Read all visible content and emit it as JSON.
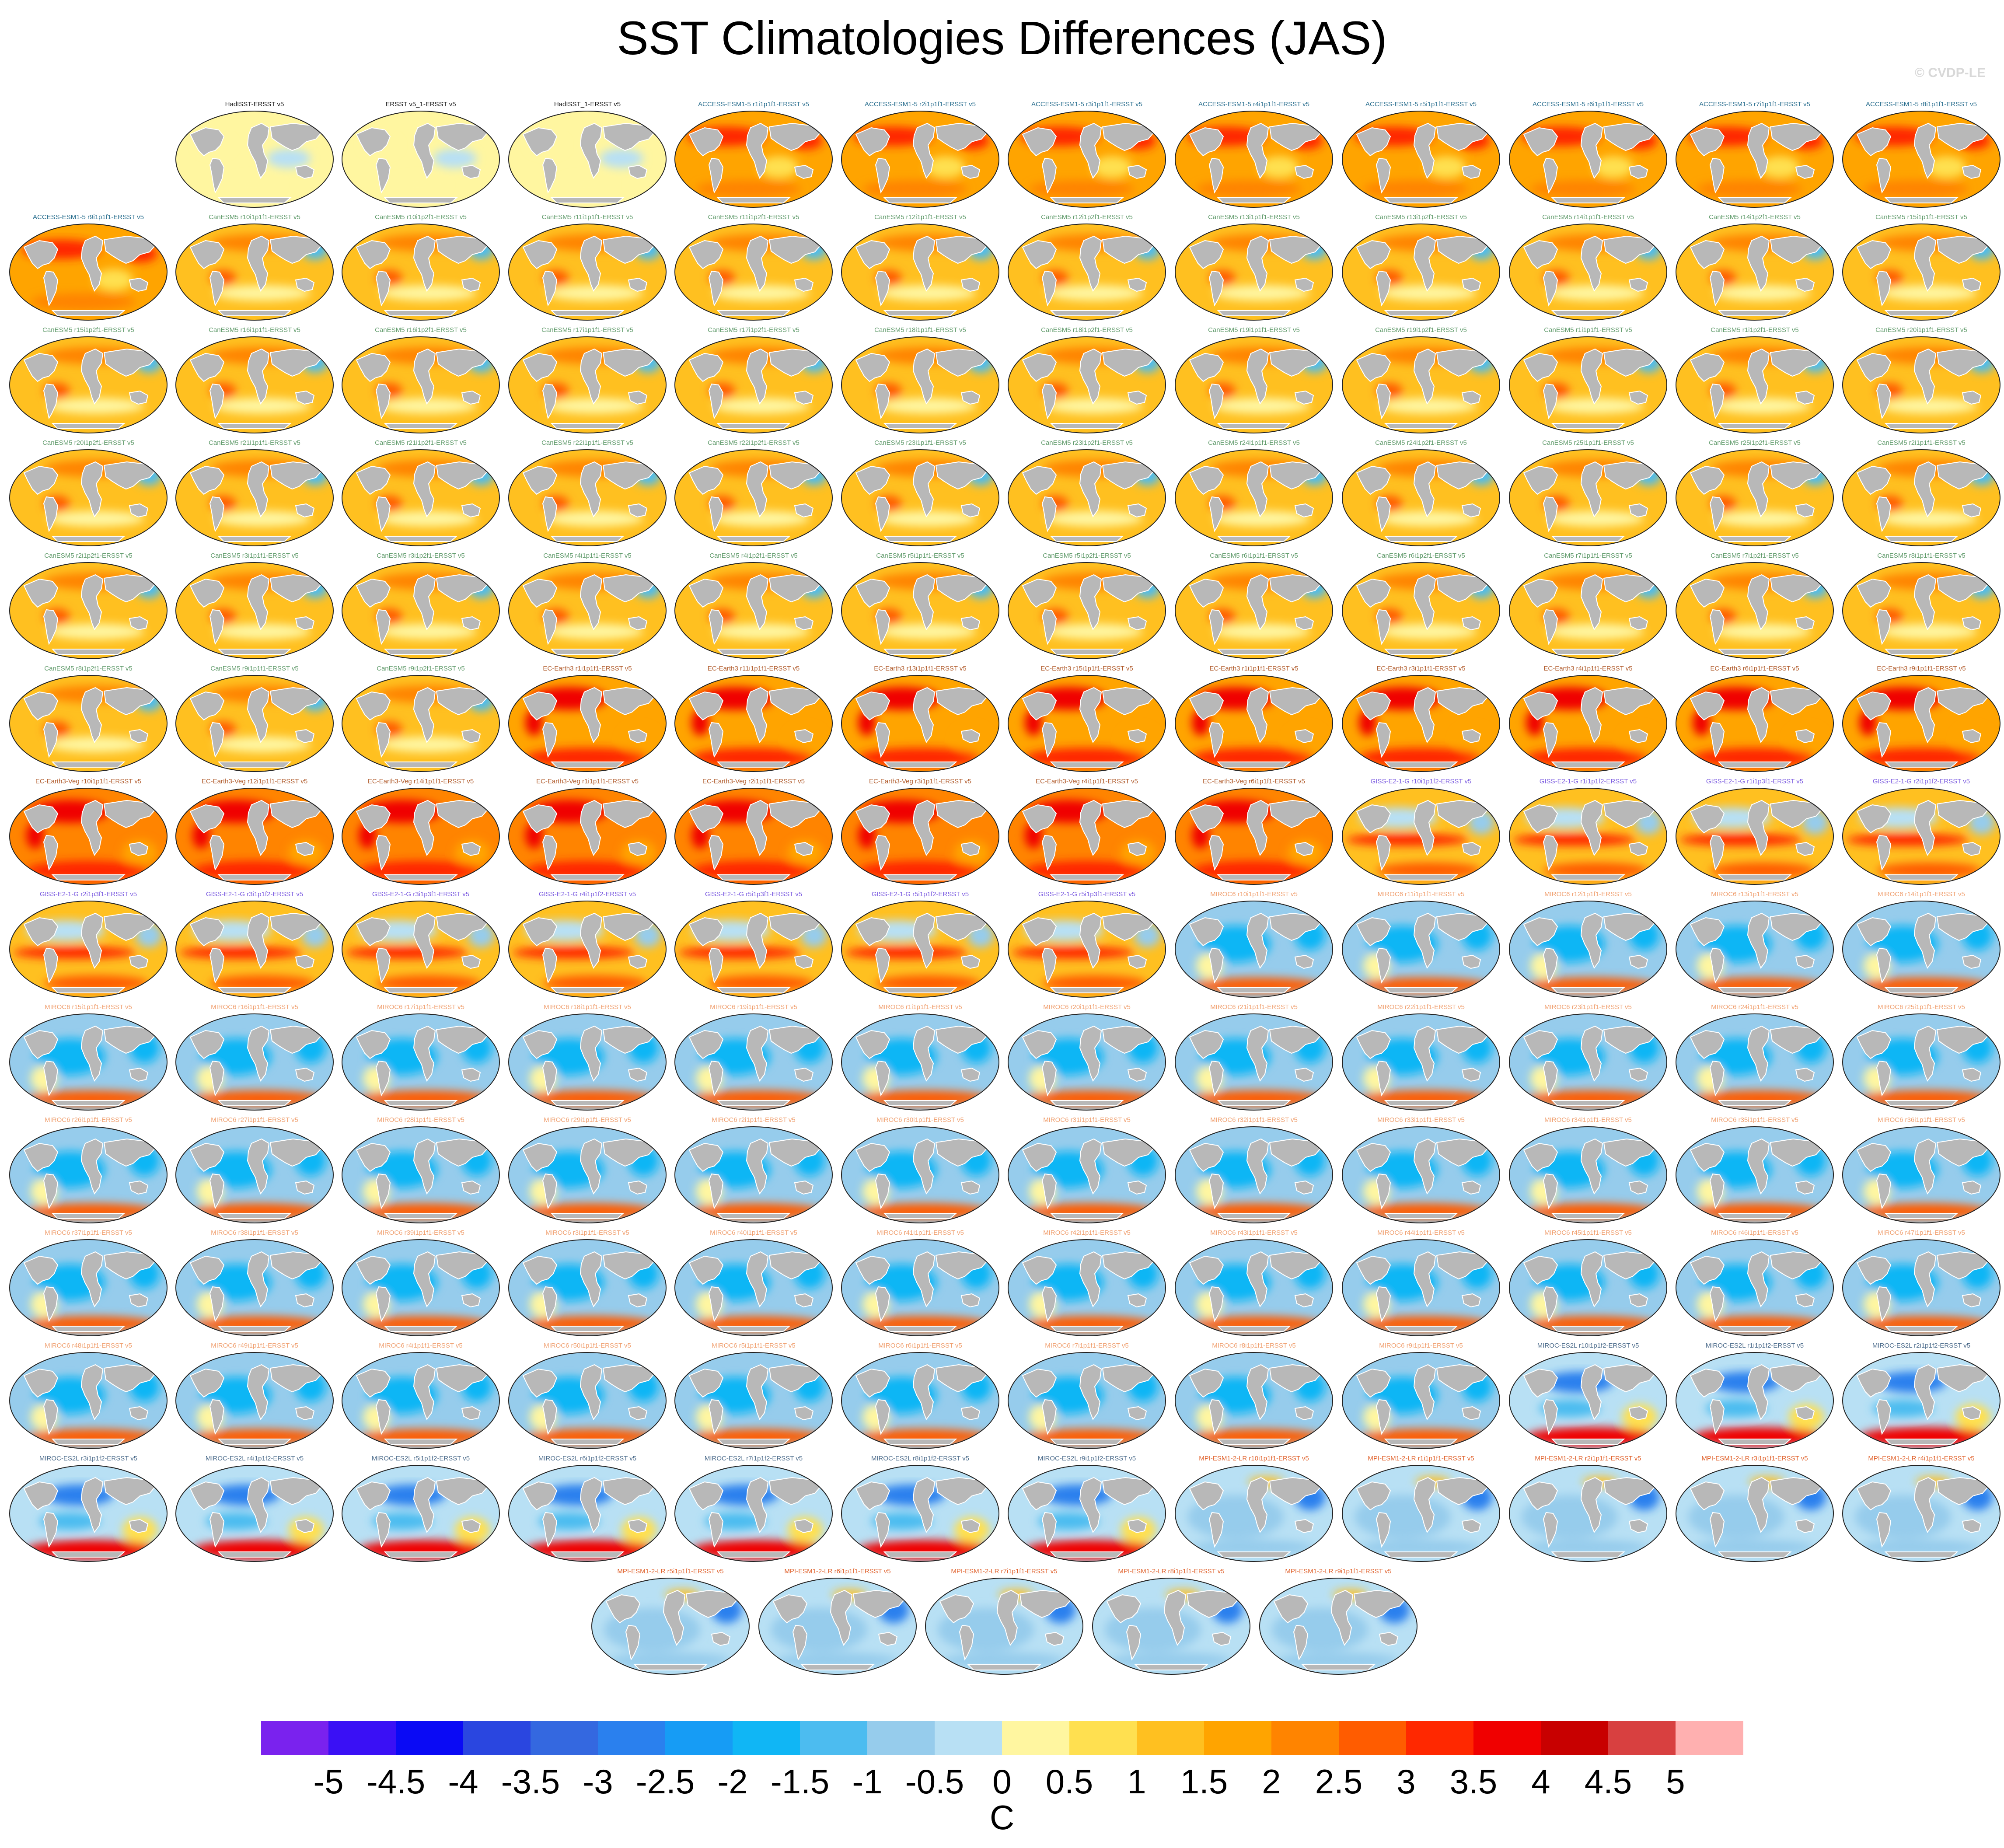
{
  "chart_data": {
    "type": "heatmap",
    "title": "SST Climatologies Differences (JAS)",
    "credit": "© CVDP-LE",
    "projection": "global maps, sea surface temperature difference vs observations",
    "colorbar": {
      "unit": "C",
      "levels": [
        "-5",
        "-4.5",
        "-4",
        "-3.5",
        "-3",
        "-2.5",
        "-2",
        "-1.5",
        "-1",
        "-0.5",
        "0",
        "0.5",
        "1",
        "1.5",
        "2",
        "2.5",
        "3",
        "3.5",
        "4",
        "4.5",
        "5"
      ],
      "colors": [
        "#7a22ee",
        "#3a10f5",
        "#0a0af5",
        "#2a46e0",
        "#3468e0",
        "#2a80ee",
        "#169cf5",
        "#10b6f5",
        "#4cbcf0",
        "#96ccec",
        "#b8e0f4",
        "#fff6a0",
        "#ffe050",
        "#ffc020",
        "#ffa400",
        "#ff8400",
        "#ff5c00",
        "#ff2800",
        "#f00000",
        "#c80000",
        "#d84040",
        "#ffb0b0"
      ]
    },
    "panels": [
      {
        "label": "HadISST-ERSST v5",
        "family": "obs",
        "bias": 0.05
      },
      {
        "label": "ERSST v5_1-ERSST v5",
        "family": "obs",
        "bias": 0.02
      },
      {
        "label": "HadISST_1-ERSST v5",
        "family": "obs",
        "bias": 0.05
      },
      {
        "label": "ACCESS-ESM1-5 r1i1p1f1-ERSST v5",
        "family": "access",
        "bias": 1.6
      },
      {
        "label": "ACCESS-ESM1-5 r2i1p1f1-ERSST v5",
        "family": "access",
        "bias": 1.6
      },
      {
        "label": "ACCESS-ESM1-5 r3i1p1f1-ERSST v5",
        "family": "access",
        "bias": 1.6
      },
      {
        "label": "ACCESS-ESM1-5 r4i1p1f1-ERSST v5",
        "family": "access",
        "bias": 1.6
      },
      {
        "label": "ACCESS-ESM1-5 r5i1p1f1-ERSST v5",
        "family": "access",
        "bias": 1.6
      },
      {
        "label": "ACCESS-ESM1-5 r6i1p1f1-ERSST v5",
        "family": "access",
        "bias": 1.6
      },
      {
        "label": "ACCESS-ESM1-5 r7i1p1f1-ERSST v5",
        "family": "access",
        "bias": 1.6
      },
      {
        "label": "ACCESS-ESM1-5 r8i1p1f1-ERSST v5",
        "family": "access",
        "bias": 1.6
      },
      {
        "label": "ACCESS-ESM1-5 r9i1p1f1-ERSST v5",
        "family": "access",
        "bias": 1.6
      },
      {
        "label": "CanESM5 r10i1p1f1-ERSST v5",
        "family": "canesm",
        "bias": 1.2
      },
      {
        "label": "CanESM5 r10i1p2f1-ERSST v5",
        "family": "canesm",
        "bias": 1.2
      },
      {
        "label": "CanESM5 r11i1p1f1-ERSST v5",
        "family": "canesm",
        "bias": 1.2
      },
      {
        "label": "CanESM5 r11i1p2f1-ERSST v5",
        "family": "canesm",
        "bias": 1.2
      },
      {
        "label": "CanESM5 r12i1p1f1-ERSST v5",
        "family": "canesm",
        "bias": 1.2
      },
      {
        "label": "CanESM5 r12i1p2f1-ERSST v5",
        "family": "canesm",
        "bias": 1.2
      },
      {
        "label": "CanESM5 r13i1p1f1-ERSST v5",
        "family": "canesm",
        "bias": 1.2
      },
      {
        "label": "CanESM5 r13i1p2f1-ERSST v5",
        "family": "canesm",
        "bias": 1.2
      },
      {
        "label": "CanESM5 r14i1p1f1-ERSST v5",
        "family": "canesm",
        "bias": 1.2
      },
      {
        "label": "CanESM5 r14i1p2f1-ERSST v5",
        "family": "canesm",
        "bias": 1.2
      },
      {
        "label": "CanESM5 r15i1p1f1-ERSST v5",
        "family": "canesm",
        "bias": 1.2
      },
      {
        "label": "CanESM5 r15i1p2f1-ERSST v5",
        "family": "canesm",
        "bias": 1.2
      },
      {
        "label": "CanESM5 r16i1p1f1-ERSST v5",
        "family": "canesm",
        "bias": 1.2
      },
      {
        "label": "CanESM5 r16i1p2f1-ERSST v5",
        "family": "canesm",
        "bias": 1.2
      },
      {
        "label": "CanESM5 r17i1p1f1-ERSST v5",
        "family": "canesm",
        "bias": 1.2
      },
      {
        "label": "CanESM5 r17i1p2f1-ERSST v5",
        "family": "canesm",
        "bias": 1.2
      },
      {
        "label": "CanESM5 r18i1p1f1-ERSST v5",
        "family": "canesm",
        "bias": 1.2
      },
      {
        "label": "CanESM5 r18i1p2f1-ERSST v5",
        "family": "canesm",
        "bias": 1.2
      },
      {
        "label": "CanESM5 r19i1p1f1-ERSST v5",
        "family": "canesm",
        "bias": 1.2
      },
      {
        "label": "CanESM5 r19i1p2f1-ERSST v5",
        "family": "canesm",
        "bias": 1.2
      },
      {
        "label": "CanESM5 r1i1p1f1-ERSST v5",
        "family": "canesm",
        "bias": 1.2
      },
      {
        "label": "CanESM5 r1i1p2f1-ERSST v5",
        "family": "canesm",
        "bias": 1.2
      },
      {
        "label": "CanESM5 r20i1p1f1-ERSST v5",
        "family": "canesm",
        "bias": 1.2
      },
      {
        "label": "CanESM5 r20i1p2f1-ERSST v5",
        "family": "canesm",
        "bias": 1.2
      },
      {
        "label": "CanESM5 r21i1p1f1-ERSST v5",
        "family": "canesm",
        "bias": 1.2
      },
      {
        "label": "CanESM5 r21i1p2f1-ERSST v5",
        "family": "canesm",
        "bias": 1.2
      },
      {
        "label": "CanESM5 r22i1p1f1-ERSST v5",
        "family": "canesm",
        "bias": 1.2
      },
      {
        "label": "CanESM5 r22i1p2f1-ERSST v5",
        "family": "canesm",
        "bias": 1.2
      },
      {
        "label": "CanESM5 r23i1p1f1-ERSST v5",
        "family": "canesm",
        "bias": 1.2
      },
      {
        "label": "CanESM5 r23i1p2f1-ERSST v5",
        "family": "canesm",
        "bias": 1.2
      },
      {
        "label": "CanESM5 r24i1p1f1-ERSST v5",
        "family": "canesm",
        "bias": 1.2
      },
      {
        "label": "CanESM5 r24i1p2f1-ERSST v5",
        "family": "canesm",
        "bias": 1.2
      },
      {
        "label": "CanESM5 r25i1p1f1-ERSST v5",
        "family": "canesm",
        "bias": 1.2
      },
      {
        "label": "CanESM5 r25i1p2f1-ERSST v5",
        "family": "canesm",
        "bias": 1.2
      },
      {
        "label": "CanESM5 r2i1p1f1-ERSST v5",
        "family": "canesm",
        "bias": 1.2
      },
      {
        "label": "CanESM5 r2i1p2f1-ERSST v5",
        "family": "canesm",
        "bias": 1.2
      },
      {
        "label": "CanESM5 r3i1p1f1-ERSST v5",
        "family": "canesm",
        "bias": 1.2
      },
      {
        "label": "CanESM5 r3i1p2f1-ERSST v5",
        "family": "canesm",
        "bias": 1.2
      },
      {
        "label": "CanESM5 r4i1p1f1-ERSST v5",
        "family": "canesm",
        "bias": 1.2
      },
      {
        "label": "CanESM5 r4i1p2f1-ERSST v5",
        "family": "canesm",
        "bias": 1.2
      },
      {
        "label": "CanESM5 r5i1p1f1-ERSST v5",
        "family": "canesm",
        "bias": 1.2
      },
      {
        "label": "CanESM5 r5i1p2f1-ERSST v5",
        "family": "canesm",
        "bias": 1.2
      },
      {
        "label": "CanESM5 r6i1p1f1-ERSST v5",
        "family": "canesm",
        "bias": 1.2
      },
      {
        "label": "CanESM5 r6i1p2f1-ERSST v5",
        "family": "canesm",
        "bias": 1.2
      },
      {
        "label": "CanESM5 r7i1p1f1-ERSST v5",
        "family": "canesm",
        "bias": 1.2
      },
      {
        "label": "CanESM5 r7i1p2f1-ERSST v5",
        "family": "canesm",
        "bias": 1.2
      },
      {
        "label": "CanESM5 r8i1p1f1-ERSST v5",
        "family": "canesm",
        "bias": 1.2
      },
      {
        "label": "CanESM5 r8i1p2f1-ERSST v5",
        "family": "canesm",
        "bias": 1.2
      },
      {
        "label": "CanESM5 r9i1p1f1-ERSST v5",
        "family": "canesm",
        "bias": 1.2
      },
      {
        "label": "CanESM5 r9i1p2f1-ERSST v5",
        "family": "canesm",
        "bias": 1.2
      },
      {
        "label": "EC-Earth3 r1i1p1f1-ERSST v5",
        "family": "ecearth",
        "bias": 1.9
      },
      {
        "label": "EC-Earth3 r11i1p1f1-ERSST v5",
        "family": "ecearth",
        "bias": 1.9
      },
      {
        "label": "EC-Earth3 r13i1p1f1-ERSST v5",
        "family": "ecearth",
        "bias": 1.9
      },
      {
        "label": "EC-Earth3 r15i1p1f1-ERSST v5",
        "family": "ecearth",
        "bias": 1.9
      },
      {
        "label": "EC-Earth3 r1i1p1f1-ERSST v5",
        "family": "ecearth",
        "bias": 1.9
      },
      {
        "label": "EC-Earth3 r3i1p1f1-ERSST v5",
        "family": "ecearth",
        "bias": 1.9
      },
      {
        "label": "EC-Earth3 r4i1p1f1-ERSST v5",
        "family": "ecearth",
        "bias": 1.9
      },
      {
        "label": "EC-Earth3 r6i1p1f1-ERSST v5",
        "family": "ecearth",
        "bias": 1.9
      },
      {
        "label": "EC-Earth3 r9i1p1f1-ERSST v5",
        "family": "ecearth",
        "bias": 1.9
      },
      {
        "label": "EC-Earth3-Veg r10i1p1f1-ERSST v5",
        "family": "ecearth",
        "bias": 2.0
      },
      {
        "label": "EC-Earth3-Veg r12i1p1f1-ERSST v5",
        "family": "ecearth",
        "bias": 2.0
      },
      {
        "label": "EC-Earth3-Veg r14i1p1f1-ERSST v5",
        "family": "ecearth",
        "bias": 2.0
      },
      {
        "label": "EC-Earth3-Veg r1i1p1f1-ERSST v5",
        "family": "ecearth",
        "bias": 2.0
      },
      {
        "label": "EC-Earth3-Veg r2i1p1f1-ERSST v5",
        "family": "ecearth",
        "bias": 2.0
      },
      {
        "label": "EC-Earth3-Veg r3i1p1f1-ERSST v5",
        "family": "ecearth",
        "bias": 2.0
      },
      {
        "label": "EC-Earth3-Veg r4i1p1f1-ERSST v5",
        "family": "ecearth",
        "bias": 2.0
      },
      {
        "label": "EC-Earth3-Veg r6i1p1f1-ERSST v5",
        "family": "ecearth",
        "bias": 2.0
      },
      {
        "label": "GISS-E2-1-G r10i1p1f2-ERSST v5",
        "family": "giss",
        "bias": 1.3
      },
      {
        "label": "GISS-E2-1-G r1i1p1f2-ERSST v5",
        "family": "giss",
        "bias": 1.3
      },
      {
        "label": "GISS-E2-1-G r1i1p3f1-ERSST v5",
        "family": "giss",
        "bias": 1.3
      },
      {
        "label": "GISS-E2-1-G r2i1p1f2-ERSST v5",
        "family": "giss",
        "bias": 1.3
      },
      {
        "label": "GISS-E2-1-G r2i1p3f1-ERSST v5",
        "family": "giss",
        "bias": 1.3
      },
      {
        "label": "GISS-E2-1-G r3i1p1f2-ERSST v5",
        "family": "giss",
        "bias": 1.3
      },
      {
        "label": "GISS-E2-1-G r3i1p3f1-ERSST v5",
        "family": "giss",
        "bias": 1.3
      },
      {
        "label": "GISS-E2-1-G r4i1p1f2-ERSST v5",
        "family": "giss",
        "bias": 1.3
      },
      {
        "label": "GISS-E2-1-G r5i1p3f1-ERSST v5",
        "family": "giss",
        "bias": 1.3
      },
      {
        "label": "GISS-E2-1-G r5i1p1f2-ERSST v5",
        "family": "giss",
        "bias": 1.3
      },
      {
        "label": "GISS-E2-1-G r5i1p3f1-ERSST v5",
        "family": "giss",
        "bias": 1.3
      },
      {
        "label": "MIROC6 r10i1p1f1-ERSST v5",
        "family": "miroc6",
        "bias": -0.6
      },
      {
        "label": "MIROC6 r11i1p1f1-ERSST v5",
        "family": "miroc6",
        "bias": -0.6
      },
      {
        "label": "MIROC6 r12i1p1f1-ERSST v5",
        "family": "miroc6",
        "bias": -0.6
      },
      {
        "label": "MIROC6 r13i1p1f1-ERSST v5",
        "family": "miroc6",
        "bias": -0.6
      },
      {
        "label": "MIROC6 r14i1p1f1-ERSST v5",
        "family": "miroc6",
        "bias": -0.6
      },
      {
        "label": "MIROC6 r15i1p1f1-ERSST v5",
        "family": "miroc6",
        "bias": -0.6
      },
      {
        "label": "MIROC6 r16i1p1f1-ERSST v5",
        "family": "miroc6",
        "bias": -0.6
      },
      {
        "label": "MIROC6 r17i1p1f1-ERSST v5",
        "family": "miroc6",
        "bias": -0.6
      },
      {
        "label": "MIROC6 r18i1p1f1-ERSST v5",
        "family": "miroc6",
        "bias": -0.6
      },
      {
        "label": "MIROC6 r19i1p1f1-ERSST v5",
        "family": "miroc6",
        "bias": -0.6
      },
      {
        "label": "MIROC6 r1i1p1f1-ERSST v5",
        "family": "miroc6",
        "bias": -0.6
      },
      {
        "label": "MIROC6 r20i1p1f1-ERSST v5",
        "family": "miroc6",
        "bias": -0.6
      },
      {
        "label": "MIROC6 r21i1p1f1-ERSST v5",
        "family": "miroc6",
        "bias": -0.6
      },
      {
        "label": "MIROC6 r22i1p1f1-ERSST v5",
        "family": "miroc6",
        "bias": -0.6
      },
      {
        "label": "MIROC6 r23i1p1f1-ERSST v5",
        "family": "miroc6",
        "bias": -0.6
      },
      {
        "label": "MIROC6 r24i1p1f1-ERSST v5",
        "family": "miroc6",
        "bias": -0.6
      },
      {
        "label": "MIROC6 r25i1p1f1-ERSST v5",
        "family": "miroc6",
        "bias": -0.6
      },
      {
        "label": "MIROC6 r26i1p1f1-ERSST v5",
        "family": "miroc6",
        "bias": -0.6
      },
      {
        "label": "MIROC6 r27i1p1f1-ERSST v5",
        "family": "miroc6",
        "bias": -0.6
      },
      {
        "label": "MIROC6 r28i1p1f1-ERSST v5",
        "family": "miroc6",
        "bias": -0.6
      },
      {
        "label": "MIROC6 r29i1p1f1-ERSST v5",
        "family": "miroc6",
        "bias": -0.6
      },
      {
        "label": "MIROC6 r2i1p1f1-ERSST v5",
        "family": "miroc6",
        "bias": -0.6
      },
      {
        "label": "MIROC6 r30i1p1f1-ERSST v5",
        "family": "miroc6",
        "bias": -0.6
      },
      {
        "label": "MIROC6 r31i1p1f1-ERSST v5",
        "family": "miroc6",
        "bias": -0.6
      },
      {
        "label": "MIROC6 r32i1p1f1-ERSST v5",
        "family": "miroc6",
        "bias": -0.6
      },
      {
        "label": "MIROC6 r33i1p1f1-ERSST v5",
        "family": "miroc6",
        "bias": -0.6
      },
      {
        "label": "MIROC6 r34i1p1f1-ERSST v5",
        "family": "miroc6",
        "bias": -0.6
      },
      {
        "label": "MIROC6 r35i1p1f1-ERSST v5",
        "family": "miroc6",
        "bias": -0.6
      },
      {
        "label": "MIROC6 r36i1p1f1-ERSST v5",
        "family": "miroc6",
        "bias": -0.6
      },
      {
        "label": "MIROC6 r37i1p1f1-ERSST v5",
        "family": "miroc6",
        "bias": -0.6
      },
      {
        "label": "MIROC6 r38i1p1f1-ERSST v5",
        "family": "miroc6",
        "bias": -0.6
      },
      {
        "label": "MIROC6 r39i1p1f1-ERSST v5",
        "family": "miroc6",
        "bias": -0.6
      },
      {
        "label": "MIROC6 r3i1p1f1-ERSST v5",
        "family": "miroc6",
        "bias": -0.6
      },
      {
        "label": "MIROC6 r40i1p1f1-ERSST v5",
        "family": "miroc6",
        "bias": -0.6
      },
      {
        "label": "MIROC6 r41i1p1f1-ERSST v5",
        "family": "miroc6",
        "bias": -0.6
      },
      {
        "label": "MIROC6 r42i1p1f1-ERSST v5",
        "family": "miroc6",
        "bias": -0.6
      },
      {
        "label": "MIROC6 r43i1p1f1-ERSST v5",
        "family": "miroc6",
        "bias": -0.6
      },
      {
        "label": "MIROC6 r44i1p1f1-ERSST v5",
        "family": "miroc6",
        "bias": -0.6
      },
      {
        "label": "MIROC6 r45i1p1f1-ERSST v5",
        "family": "miroc6",
        "bias": -0.6
      },
      {
        "label": "MIROC6 r46i1p1f1-ERSST v5",
        "family": "miroc6",
        "bias": -0.6
      },
      {
        "label": "MIROC6 r47i1p1f1-ERSST v5",
        "family": "miroc6",
        "bias": -0.6
      },
      {
        "label": "MIROC6 r48i1p1f1-ERSST v5",
        "family": "miroc6",
        "bias": -0.6
      },
      {
        "label": "MIROC6 r49i1p1f1-ERSST v5",
        "family": "miroc6",
        "bias": -0.6
      },
      {
        "label": "MIROC6 r4i1p1f1-ERSST v5",
        "family": "miroc6",
        "bias": -0.6
      },
      {
        "label": "MIROC6 r50i1p1f1-ERSST v5",
        "family": "miroc6",
        "bias": -0.6
      },
      {
        "label": "MIROC6 r5i1p1f1-ERSST v5",
        "family": "miroc6",
        "bias": -0.6
      },
      {
        "label": "MIROC6 r6i1p1f1-ERSST v5",
        "family": "miroc6",
        "bias": -0.6
      },
      {
        "label": "MIROC6 r7i1p1f1-ERSST v5",
        "family": "miroc6",
        "bias": -0.6
      },
      {
        "label": "MIROC6 r8i1p1f1-ERSST v5",
        "family": "miroc6",
        "bias": -0.6
      },
      {
        "label": "MIROC6 r9i1p1f1-ERSST v5",
        "family": "miroc6",
        "bias": -0.6
      },
      {
        "label": "MIROC-ES2L r10i1p1f2-ERSST v5",
        "family": "miroces2l",
        "bias": -0.4
      },
      {
        "label": "MIROC-ES2L r1i1p1f2-ERSST v5",
        "family": "miroces2l",
        "bias": -0.4
      },
      {
        "label": "MIROC-ES2L r2i1p1f2-ERSST v5",
        "family": "miroces2l",
        "bias": -0.4
      },
      {
        "label": "MIROC-ES2L r3i1p1f2-ERSST v5",
        "family": "miroces2l",
        "bias": -0.4
      },
      {
        "label": "MIROC-ES2L r4i1p1f2-ERSST v5",
        "family": "miroces2l",
        "bias": -0.4
      },
      {
        "label": "MIROC-ES2L r5i1p1f2-ERSST v5",
        "family": "miroces2l",
        "bias": -0.4
      },
      {
        "label": "MIROC-ES2L r6i1p1f2-ERSST v5",
        "family": "miroces2l",
        "bias": -0.4
      },
      {
        "label": "MIROC-ES2L r7i1p1f2-ERSST v5",
        "family": "miroces2l",
        "bias": -0.4
      },
      {
        "label": "MIROC-ES2L r8i1p1f2-ERSST v5",
        "family": "miroces2l",
        "bias": -0.4
      },
      {
        "label": "MIROC-ES2L r9i1p1f2-ERSST v5",
        "family": "miroces2l",
        "bias": -0.4
      },
      {
        "label": "MPI-ESM1-2-LR r10i1p1f1-ERSST v5",
        "family": "mpi",
        "bias": -0.2
      },
      {
        "label": "MPI-ESM1-2-LR r1i1p1f1-ERSST v5",
        "family": "mpi",
        "bias": -0.2
      },
      {
        "label": "MPI-ESM1-2-LR r2i1p1f1-ERSST v5",
        "family": "mpi",
        "bias": -0.2
      },
      {
        "label": "MPI-ESM1-2-LR r3i1p1f1-ERSST v5",
        "family": "mpi",
        "bias": -0.2
      },
      {
        "label": "MPI-ESM1-2-LR r4i1p1f1-ERSST v5",
        "family": "mpi",
        "bias": -0.2
      },
      {
        "label": "MPI-ESM1-2-LR r5i1p1f1-ERSST v5",
        "family": "mpi",
        "bias": -0.2
      },
      {
        "label": "MPI-ESM1-2-LR r6i1p1f1-ERSST v5",
        "family": "mpi",
        "bias": -0.2
      },
      {
        "label": "MPI-ESM1-2-LR r7i1p1f1-ERSST v5",
        "family": "mpi",
        "bias": -0.2
      },
      {
        "label": "MPI-ESM1-2-LR r8i1p1f1-ERSST v5",
        "family": "mpi",
        "bias": -0.2
      },
      {
        "label": "MPI-ESM1-2-LR r9i1p1f1-ERSST v5",
        "family": "mpi",
        "bias": -0.2
      }
    ]
  },
  "family_title_colors": {
    "obs": "#111111",
    "access": "#2a6f8f",
    "canesm": "#5f9a6a",
    "ecearth": "#b05a2a",
    "giss": "#7a5ae0",
    "miroc6": "#f0a070",
    "miroces2l": "#4a6a8a",
    "mpi": "#e0602a"
  },
  "map_colors": {
    "land": "#b8b8b8",
    "ocean_base": "#ffe566",
    "coast": "#ffffff",
    "frame": "#222222"
  }
}
